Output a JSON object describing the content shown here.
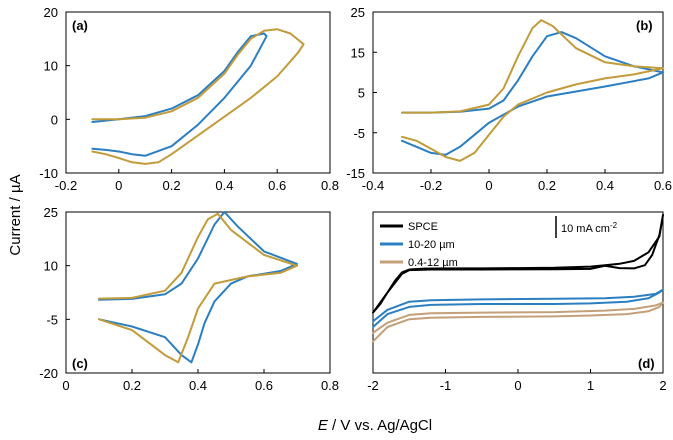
{
  "figure": {
    "ylabel": "Current / µA",
    "xlabel_italic": "E",
    "xlabel_rest": " / V vs. Ag/AgCl"
  },
  "colors": {
    "blue": "#2b7fc1",
    "gold": "#c29b3a",
    "black": "#000000",
    "tan": "#c4a07a"
  },
  "chart_data": [
    {
      "panel": "(a)",
      "type": "line",
      "xlim": [
        -0.2,
        0.8
      ],
      "ylim": [
        -10,
        20
      ],
      "xticks": [
        -0.2,
        0,
        0.2,
        0.4,
        0.6,
        0.8
      ],
      "yticks": [
        -10,
        0,
        10,
        20
      ],
      "series": [
        {
          "name": "blue",
          "color": "#2b7fc1",
          "x": [
            -0.1,
            0.0,
            0.1,
            0.2,
            0.3,
            0.4,
            0.45,
            0.5,
            0.55,
            0.56,
            0.5,
            0.4,
            0.3,
            0.2,
            0.1,
            0.05,
            0.0,
            -0.05,
            -0.1
          ],
          "y": [
            -0.5,
            0.0,
            0.6,
            2.0,
            4.5,
            9.0,
            12.5,
            15.5,
            16.0,
            15.5,
            10.0,
            4.0,
            -1.0,
            -5.0,
            -6.8,
            -6.5,
            -6.0,
            -5.7,
            -5.5
          ]
        },
        {
          "name": "gold",
          "color": "#c29b3a",
          "x": [
            -0.1,
            0.0,
            0.1,
            0.2,
            0.3,
            0.4,
            0.45,
            0.5,
            0.55,
            0.6,
            0.65,
            0.7,
            0.68,
            0.6,
            0.5,
            0.4,
            0.3,
            0.2,
            0.15,
            0.1,
            0.05,
            0.0,
            -0.05,
            -0.1
          ],
          "y": [
            0.0,
            0.0,
            0.3,
            1.5,
            4.0,
            8.5,
            12.0,
            15.0,
            16.5,
            16.8,
            16.0,
            14.0,
            12.5,
            8.0,
            4.0,
            0.5,
            -3.0,
            -6.5,
            -8.0,
            -8.3,
            -8.0,
            -7.2,
            -6.5,
            -6.0
          ]
        }
      ]
    },
    {
      "panel": "(b)",
      "type": "line",
      "xlim": [
        -0.4,
        0.6
      ],
      "ylim": [
        -15,
        25
      ],
      "xticks": [
        -0.4,
        -0.2,
        0,
        0.2,
        0.4,
        0.6
      ],
      "yticks": [
        -15,
        -5,
        5,
        15,
        25
      ],
      "series": [
        {
          "name": "blue",
          "color": "#2b7fc1",
          "x": [
            -0.3,
            -0.2,
            -0.1,
            0.0,
            0.05,
            0.1,
            0.15,
            0.2,
            0.25,
            0.3,
            0.4,
            0.5,
            0.6,
            0.55,
            0.4,
            0.2,
            0.1,
            0.0,
            -0.05,
            -0.1,
            -0.15,
            -0.2,
            -0.25,
            -0.3
          ],
          "y": [
            0.0,
            0.0,
            0.2,
            1.0,
            3.0,
            8.0,
            14.0,
            19.0,
            20.0,
            18.5,
            14.0,
            11.5,
            10.0,
            8.5,
            6.5,
            4.0,
            1.5,
            -2.5,
            -5.5,
            -8.5,
            -10.5,
            -10.0,
            -8.5,
            -7.0
          ]
        },
        {
          "name": "gold",
          "color": "#c29b3a",
          "x": [
            -0.3,
            -0.2,
            -0.1,
            0.0,
            0.05,
            0.1,
            0.15,
            0.18,
            0.22,
            0.3,
            0.4,
            0.5,
            0.6,
            0.5,
            0.4,
            0.3,
            0.2,
            0.1,
            0.05,
            0.0,
            -0.05,
            -0.1,
            -0.15,
            -0.2,
            -0.25,
            -0.3
          ],
          "y": [
            0.0,
            0.0,
            0.3,
            2.0,
            6.0,
            14.0,
            21.0,
            23.0,
            21.5,
            16.0,
            12.5,
            11.5,
            11.0,
            9.5,
            8.5,
            7.0,
            5.0,
            2.0,
            -1.0,
            -5.5,
            -10.0,
            -12.0,
            -11.0,
            -9.0,
            -7.0,
            -6.0
          ]
        }
      ]
    },
    {
      "panel": "(c)",
      "type": "line",
      "xlim": [
        0,
        0.8
      ],
      "ylim": [
        -20,
        25
      ],
      "xticks": [
        0,
        0.2,
        0.4,
        0.6,
        0.8
      ],
      "yticks": [
        -20,
        -5,
        10,
        25
      ],
      "series": [
        {
          "name": "blue",
          "color": "#2b7fc1",
          "x": [
            0.1,
            0.2,
            0.3,
            0.35,
            0.4,
            0.45,
            0.48,
            0.52,
            0.6,
            0.7,
            0.65,
            0.55,
            0.5,
            0.45,
            0.42,
            0.4,
            0.38,
            0.35,
            0.3,
            0.2,
            0.1
          ],
          "y": [
            0.5,
            0.7,
            2.0,
            5.0,
            12.0,
            21.5,
            25.0,
            21.0,
            14.0,
            10.5,
            8.5,
            7.0,
            5.0,
            0.0,
            -6.0,
            -12.0,
            -17.0,
            -15.0,
            -10.0,
            -7.0,
            -5.0
          ]
        },
        {
          "name": "gold",
          "color": "#c29b3a",
          "x": [
            0.1,
            0.2,
            0.3,
            0.35,
            0.4,
            0.43,
            0.46,
            0.5,
            0.6,
            0.7,
            0.65,
            0.55,
            0.5,
            0.45,
            0.4,
            0.37,
            0.34,
            0.3,
            0.2,
            0.1
          ],
          "y": [
            0.8,
            1.0,
            3.0,
            8.0,
            18.0,
            23.0,
            24.5,
            20.0,
            13.0,
            10.0,
            8.0,
            7.0,
            6.0,
            5.0,
            -2.0,
            -10.0,
            -17.0,
            -15.0,
            -8.0,
            -5.0
          ]
        }
      ]
    },
    {
      "panel": "(d)",
      "type": "line",
      "xlim": [
        -2,
        2
      ],
      "xticks": [
        -2,
        -1,
        0,
        1,
        2
      ],
      "yticks": [],
      "scale_bar": "10 mA cm",
      "scale_bar_exp": "-2",
      "legend": [
        "SPCE",
        "10-20 µm",
        "0.4-12 µm"
      ],
      "legend_location": "top-left",
      "series": [
        {
          "name": "SPCE",
          "color": "#000000",
          "x": [
            -2.0,
            -1.8,
            -1.6,
            -1.5,
            -1.2,
            -0.5,
            0.5,
            1.0,
            1.2,
            1.4,
            1.6,
            1.75,
            1.85,
            1.95,
            2.0,
            1.95,
            1.8,
            1.6,
            1.4,
            1.2,
            1.0,
            0.5,
            0.0,
            -0.5,
            -1.0,
            -1.3,
            -1.5,
            -1.6,
            -1.7,
            -1.8,
            -1.9,
            -2.0
          ],
          "y": [
            -7.0,
            0.0,
            6.5,
            7.8,
            8.0,
            8.0,
            8.1,
            8.2,
            9.3,
            8.5,
            8.4,
            9.5,
            13.0,
            20.0,
            27.0,
            19.5,
            14.0,
            11.0,
            10.0,
            9.5,
            9.0,
            8.6,
            8.5,
            8.4,
            8.4,
            8.3,
            8.0,
            7.0,
            4.0,
            0.0,
            -4.0,
            -7.0
          ]
        },
        {
          "name": "10-20 µm",
          "color": "#2b7fc1",
          "x": [
            -2.0,
            -1.8,
            -1.5,
            -1.2,
            -0.5,
            0.5,
            1.0,
            1.5,
            1.8,
            1.95,
            2.0,
            1.9,
            1.6,
            1.2,
            0.5,
            -0.5,
            -1.2,
            -1.5,
            -1.8,
            -2.0
          ],
          "y": [
            -12.0,
            -7.5,
            -5.0,
            -4.3,
            -4.0,
            -4.0,
            -3.8,
            -3.2,
            -2.0,
            0.0,
            1.0,
            -0.5,
            -1.5,
            -2.0,
            -2.2,
            -2.4,
            -2.7,
            -3.2,
            -6.0,
            -10.0
          ]
        },
        {
          "name": "0.4-12 µm",
          "color": "#c4a07a",
          "x": [
            -2.0,
            -1.8,
            -1.5,
            -1.2,
            -0.5,
            0.5,
            1.0,
            1.5,
            1.8,
            1.95,
            2.0,
            1.9,
            1.6,
            1.2,
            0.5,
            -0.5,
            -1.2,
            -1.5,
            -1.8,
            -2.0
          ],
          "y": [
            -17.0,
            -12.0,
            -9.3,
            -8.8,
            -8.5,
            -8.3,
            -8.0,
            -7.5,
            -6.5,
            -5.0,
            -3.5,
            -4.5,
            -5.7,
            -6.3,
            -6.8,
            -7.0,
            -7.2,
            -7.8,
            -10.5,
            -14.0
          ]
        }
      ]
    }
  ]
}
